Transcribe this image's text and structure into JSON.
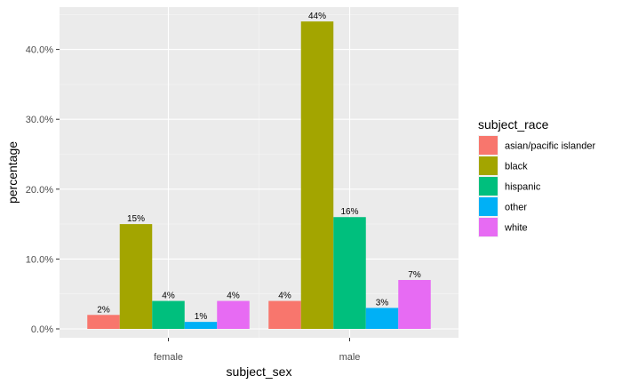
{
  "chart_data": {
    "type": "bar",
    "xlabel": "subject_sex",
    "ylabel": "percentage",
    "categories": [
      "female",
      "male"
    ],
    "ylim": [
      0,
      45
    ],
    "yticks": [
      0,
      10,
      20,
      30,
      40
    ],
    "ytick_labels": [
      "0.0%",
      "10.0%",
      "20.0%",
      "30.0%",
      "40.0%"
    ],
    "legend_title": "subject_race",
    "legend_position": "right",
    "grid": true,
    "series": [
      {
        "name": "asian/pacific islander",
        "color": "#F8766D",
        "values": [
          2,
          4
        ],
        "labels": [
          "2%",
          "4%"
        ]
      },
      {
        "name": "black",
        "color": "#A3A500",
        "values": [
          15,
          44
        ],
        "labels": [
          "15%",
          "44%"
        ]
      },
      {
        "name": "hispanic",
        "color": "#00BF7D",
        "values": [
          4,
          16
        ],
        "labels": [
          "4%",
          "16%"
        ]
      },
      {
        "name": "other",
        "color": "#00B0F6",
        "values": [
          1,
          3
        ],
        "labels": [
          "1%",
          "3%"
        ]
      },
      {
        "name": "white",
        "color": "#E76BF3",
        "values": [
          4,
          7
        ],
        "labels": [
          "4%",
          "7%"
        ]
      }
    ]
  }
}
